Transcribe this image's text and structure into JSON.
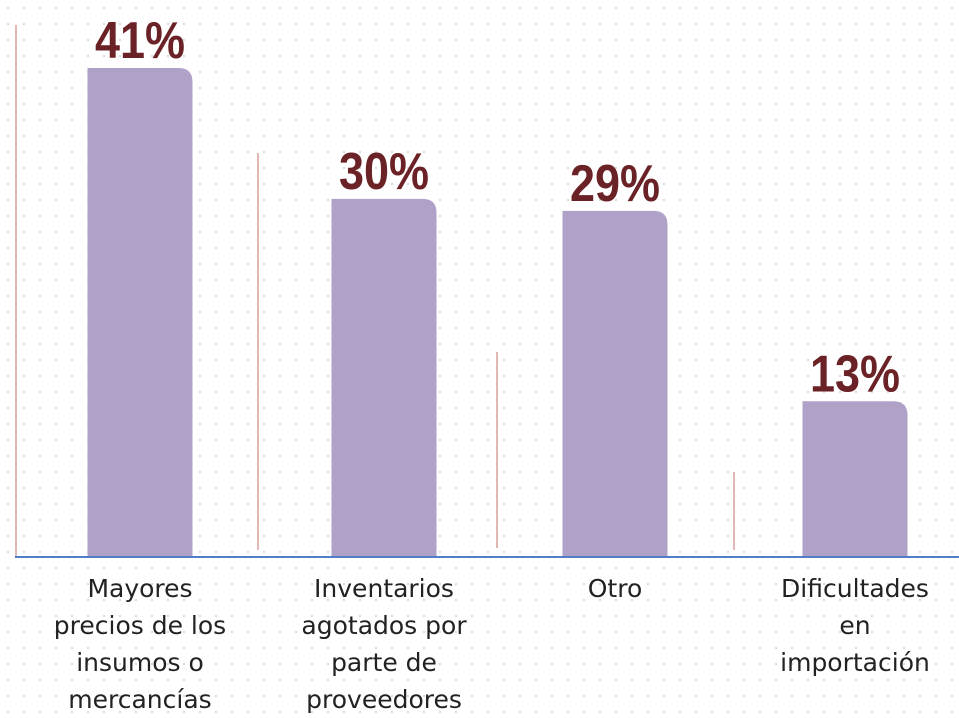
{
  "chart_data": {
    "type": "bar",
    "categories": [
      "Mayores precios de los insumos o mercancías",
      "Inventarios agotados por parte de proveedores",
      "Otro",
      "Dificultades en importación"
    ],
    "values": [
      41,
      30,
      29,
      13
    ],
    "value_labels": [
      "41%",
      "30%",
      "29%",
      "13%"
    ],
    "color": "#b0a1c9"
  }
}
